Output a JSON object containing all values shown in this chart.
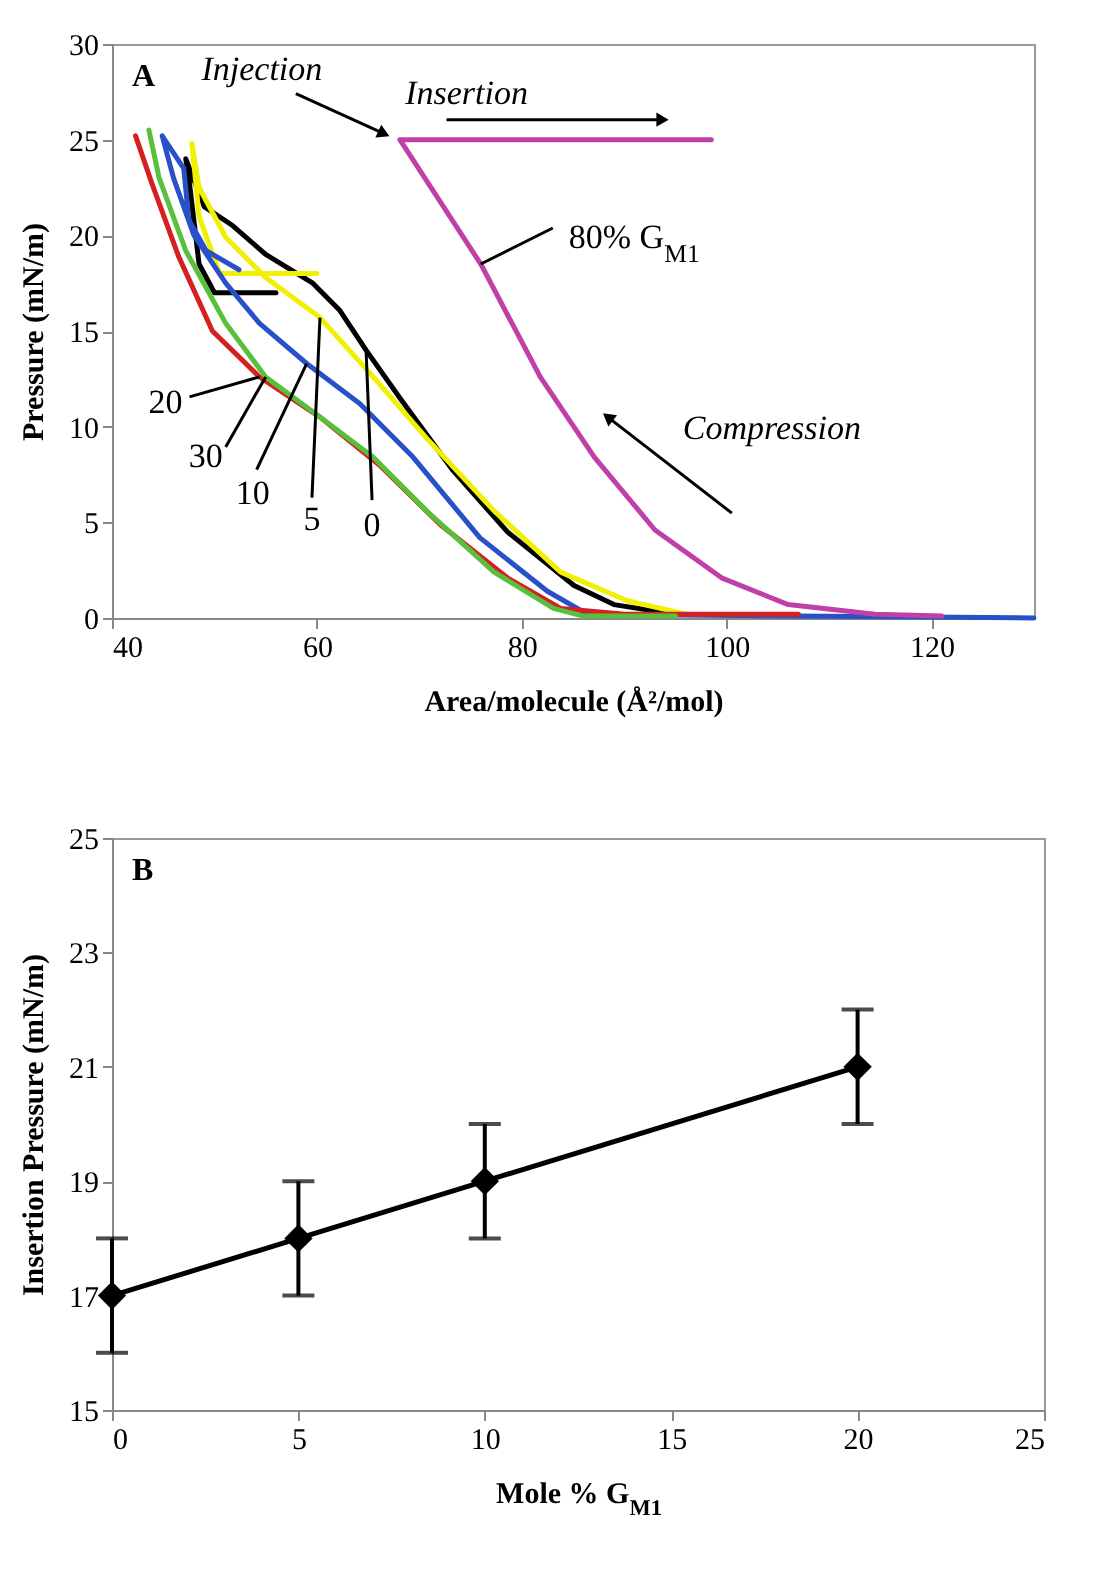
{
  "chart_data": [
    {
      "type": "line",
      "title": "A",
      "xlabel": "Area/molecule (Å²/mol)",
      "ylabel": "Pressure (mN/m)",
      "xlim": [
        40,
        130
      ],
      "ylim": [
        0,
        30
      ],
      "xticks": [
        40,
        60,
        80,
        100,
        120
      ],
      "yticks": [
        0,
        5,
        10,
        15,
        20,
        25,
        30
      ],
      "line_style": "solid",
      "series": [
        {
          "color": "#000000",
          "x": [
            95,
            89,
            85.1,
            78.6,
            73.3,
            68.1,
            64.8,
            62.2,
            59.6,
            55,
            51.8,
            49,
            47.2,
            47.5,
            48.5,
            50,
            56
          ],
          "values": [
            0.2,
            0.7,
            1.7,
            4.5,
            7.7,
            11.5,
            14,
            16.1,
            17.5,
            19,
            20.5,
            21.5,
            24,
            23,
            18.5,
            17,
            17
          ]
        },
        {
          "color": "#f0f000",
          "x": [
            96,
            90.3,
            83.8,
            77.3,
            70.7,
            65.5,
            60.3,
            55,
            51.1,
            48.5,
            47.8,
            48.5,
            50.5,
            60
          ],
          "values": [
            0.2,
            0.9,
            2.4,
            5.6,
            9.4,
            12.6,
            15.7,
            17.8,
            19.9,
            22.5,
            24.8,
            21,
            18,
            18
          ]
        },
        {
          "color": "#2850c8",
          "x": [
            130,
            86.4,
            82.5,
            75.9,
            69.4,
            64.2,
            59,
            54.4,
            51.1,
            48,
            46,
            44.9,
            47,
            47.5,
            49.2,
            52.4
          ],
          "values": [
            0,
            0.2,
            1.4,
            4.2,
            8.4,
            11.2,
            13.3,
            15.4,
            17.5,
            20,
            23,
            25.2,
            23.5,
            20.8,
            19.2,
            18.2
          ]
        },
        {
          "color": "#d42020",
          "x": [
            107,
            90,
            83.8,
            78.6,
            72,
            66.1,
            60.3,
            54.4,
            49.8,
            46.5,
            43.9,
            42.3
          ],
          "values": [
            0.2,
            0.2,
            0.5,
            2.1,
            4.9,
            8,
            10.5,
            12.6,
            15,
            18.9,
            22.7,
            25.2
          ]
        },
        {
          "color": "#58c03a",
          "x": [
            95,
            86,
            83.1,
            77.3,
            70.7,
            65.5,
            60.3,
            55,
            51.1,
            47.2,
            44.6,
            43.6
          ],
          "values": [
            0.1,
            0.1,
            0.5,
            2.4,
            5.6,
            8.4,
            10.5,
            12.6,
            15.4,
            19.2,
            23,
            25.5
          ]
        },
        {
          "color": "#c040a8",
          "x": [
            121,
            114.5,
            106,
            99.5,
            93,
            87.1,
            81.8,
            76,
            68.1,
            98.5
          ],
          "values": [
            0.1,
            0.2,
            0.7,
            2.1,
            4.6,
            8.4,
            12.6,
            18.5,
            25,
            25
          ]
        }
      ],
      "annotations": [
        {
          "text": "Injection",
          "x": 68.1,
          "y": 25
        },
        {
          "text": "Insertion",
          "x": 83,
          "y": 25
        },
        {
          "text": "Compression",
          "x": 88.4,
          "y": 10.5
        },
        {
          "text": "80% G$_{M1}$",
          "x": 76,
          "y": 18.5
        },
        {
          "text": "20",
          "x": 54.4,
          "y": 12.6
        },
        {
          "text": "30",
          "x": 55,
          "y": 12.6
        },
        {
          "text": "10",
          "x": 59,
          "y": 13.3
        },
        {
          "text": "5",
          "x": 60.3,
          "y": 15.7
        },
        {
          "text": "0",
          "x": 64.8,
          "y": 14
        }
      ]
    },
    {
      "type": "line",
      "title": "B",
      "xlabel": "Mole % G$_{M1}$",
      "ylabel": "Insertion Pressure (mN/m)",
      "xlim": [
        0,
        25
      ],
      "ylim": [
        15,
        25
      ],
      "xticks": [
        0,
        5,
        10,
        15,
        20,
        25
      ],
      "yticks": [
        15,
        17,
        19,
        21,
        23,
        25
      ],
      "marker": "diamond",
      "line_style": "solid",
      "series": [
        {
          "color": "#000000",
          "x": [
            0,
            5,
            10,
            20
          ],
          "values": [
            17,
            18,
            19,
            21
          ],
          "errors": [
            1,
            1,
            1,
            1
          ]
        }
      ]
    }
  ]
}
